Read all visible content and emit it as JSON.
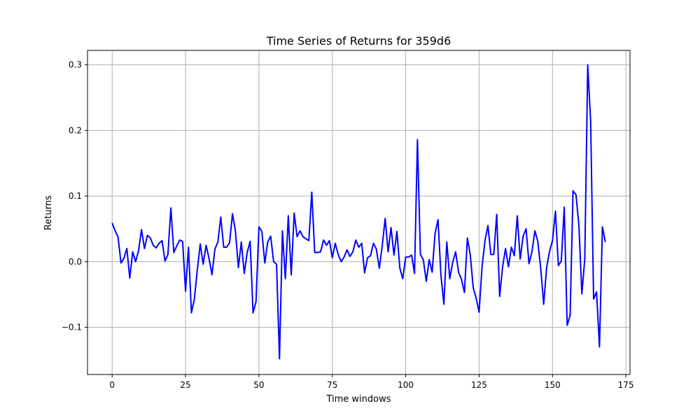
{
  "chart_data": {
    "type": "line",
    "title": "Time Series of Returns for 359d6",
    "xlabel": "Time windows",
    "ylabel": "Returns",
    "xlim": [
      -8.4,
      176.4
    ],
    "ylim": [
      -0.172,
      0.322
    ],
    "xticks": [
      0,
      25,
      50,
      75,
      100,
      125,
      150,
      175
    ],
    "yticks": [
      -0.1,
      0.0,
      0.1,
      0.2,
      0.3
    ],
    "ytick_labels": [
      "−0.1",
      "0.0",
      "0.1",
      "0.2",
      "0.3"
    ],
    "grid": true,
    "series": [
      {
        "color": "#0000ff",
        "x": [
          0,
          1,
          2,
          3,
          4,
          5,
          6,
          7,
          8,
          9,
          10,
          11,
          12,
          13,
          14,
          15,
          16,
          17,
          18,
          19,
          20,
          21,
          22,
          23,
          24,
          25,
          26,
          27,
          28,
          29,
          30,
          31,
          32,
          33,
          34,
          35,
          36,
          37,
          38,
          39,
          40,
          41,
          42,
          43,
          44,
          45,
          46,
          47,
          48,
          49,
          50,
          51,
          52,
          53,
          54,
          55,
          56,
          57,
          58,
          59,
          60,
          61,
          62,
          63,
          64,
          65,
          66,
          67,
          68,
          69,
          70,
          71,
          72,
          73,
          74,
          75,
          76,
          77,
          78,
          79,
          80,
          81,
          82,
          83,
          84,
          85,
          86,
          87,
          88,
          89,
          90,
          91,
          92,
          93,
          94,
          95,
          96,
          97,
          98,
          99,
          100,
          101,
          102,
          103,
          104,
          105,
          106,
          107,
          108,
          109,
          110,
          111,
          112,
          113,
          114,
          115,
          116,
          117,
          118,
          119,
          120,
          121,
          122,
          123,
          124,
          125,
          126,
          127,
          128,
          129,
          130,
          131,
          132,
          133,
          134,
          135,
          136,
          137,
          138,
          139,
          140,
          141,
          142,
          143,
          144,
          145,
          146,
          147,
          148,
          149,
          150,
          151,
          152,
          153,
          154,
          155,
          156,
          157,
          158,
          159,
          160,
          161,
          162,
          163,
          164,
          165,
          166,
          167,
          168
        ],
        "y": [
          0.059,
          0.047,
          0.038,
          -0.002,
          0.005,
          0.02,
          -0.025,
          0.015,
          0.0,
          0.017,
          0.049,
          0.02,
          0.04,
          0.036,
          0.025,
          0.021,
          0.028,
          0.032,
          0.001,
          0.011,
          0.082,
          0.014,
          0.024,
          0.033,
          0.031,
          -0.045,
          0.022,
          -0.078,
          -0.057,
          -0.013,
          0.027,
          -0.004,
          0.025,
          0.005,
          -0.02,
          0.019,
          0.03,
          0.068,
          0.022,
          0.022,
          0.029,
          0.073,
          0.046,
          -0.009,
          0.03,
          -0.018,
          0.014,
          0.031,
          -0.078,
          -0.061,
          0.053,
          0.046,
          -0.002,
          0.03,
          0.039,
          0.0,
          -0.004,
          -0.148,
          0.047,
          -0.026,
          0.07,
          -0.02,
          0.074,
          0.038,
          0.047,
          0.038,
          0.035,
          0.032,
          0.106,
          0.014,
          0.014,
          0.015,
          0.033,
          0.025,
          0.032,
          0.006,
          0.028,
          0.011,
          0.0,
          0.007,
          0.018,
          0.008,
          0.015,
          0.033,
          0.022,
          0.028,
          -0.017,
          0.006,
          0.009,
          0.028,
          0.019,
          -0.01,
          0.024,
          0.066,
          0.015,
          0.052,
          0.01,
          0.046,
          -0.01,
          -0.026,
          0.007,
          0.007,
          0.01,
          -0.018,
          0.186,
          0.011,
          0.003,
          -0.03,
          0.003,
          -0.016,
          0.043,
          0.064,
          -0.021,
          -0.065,
          0.03,
          -0.026,
          -0.001,
          0.015,
          -0.016,
          -0.027,
          -0.047,
          0.036,
          0.01,
          -0.04,
          -0.056,
          -0.077,
          -0.008,
          0.032,
          0.055,
          0.011,
          0.011,
          0.072,
          -0.053,
          -0.008,
          0.02,
          -0.008,
          0.022,
          0.009,
          0.07,
          0.004,
          0.039,
          0.05,
          -0.003,
          0.015,
          0.047,
          0.031,
          -0.011,
          -0.065,
          -0.009,
          0.016,
          0.032,
          0.077,
          -0.006,
          0.001,
          0.083,
          -0.097,
          -0.082,
          0.108,
          0.102,
          0.055,
          -0.049,
          0.004,
          0.3,
          0.214,
          -0.057,
          -0.046,
          -0.13,
          0.053,
          0.03
        ]
      }
    ]
  }
}
